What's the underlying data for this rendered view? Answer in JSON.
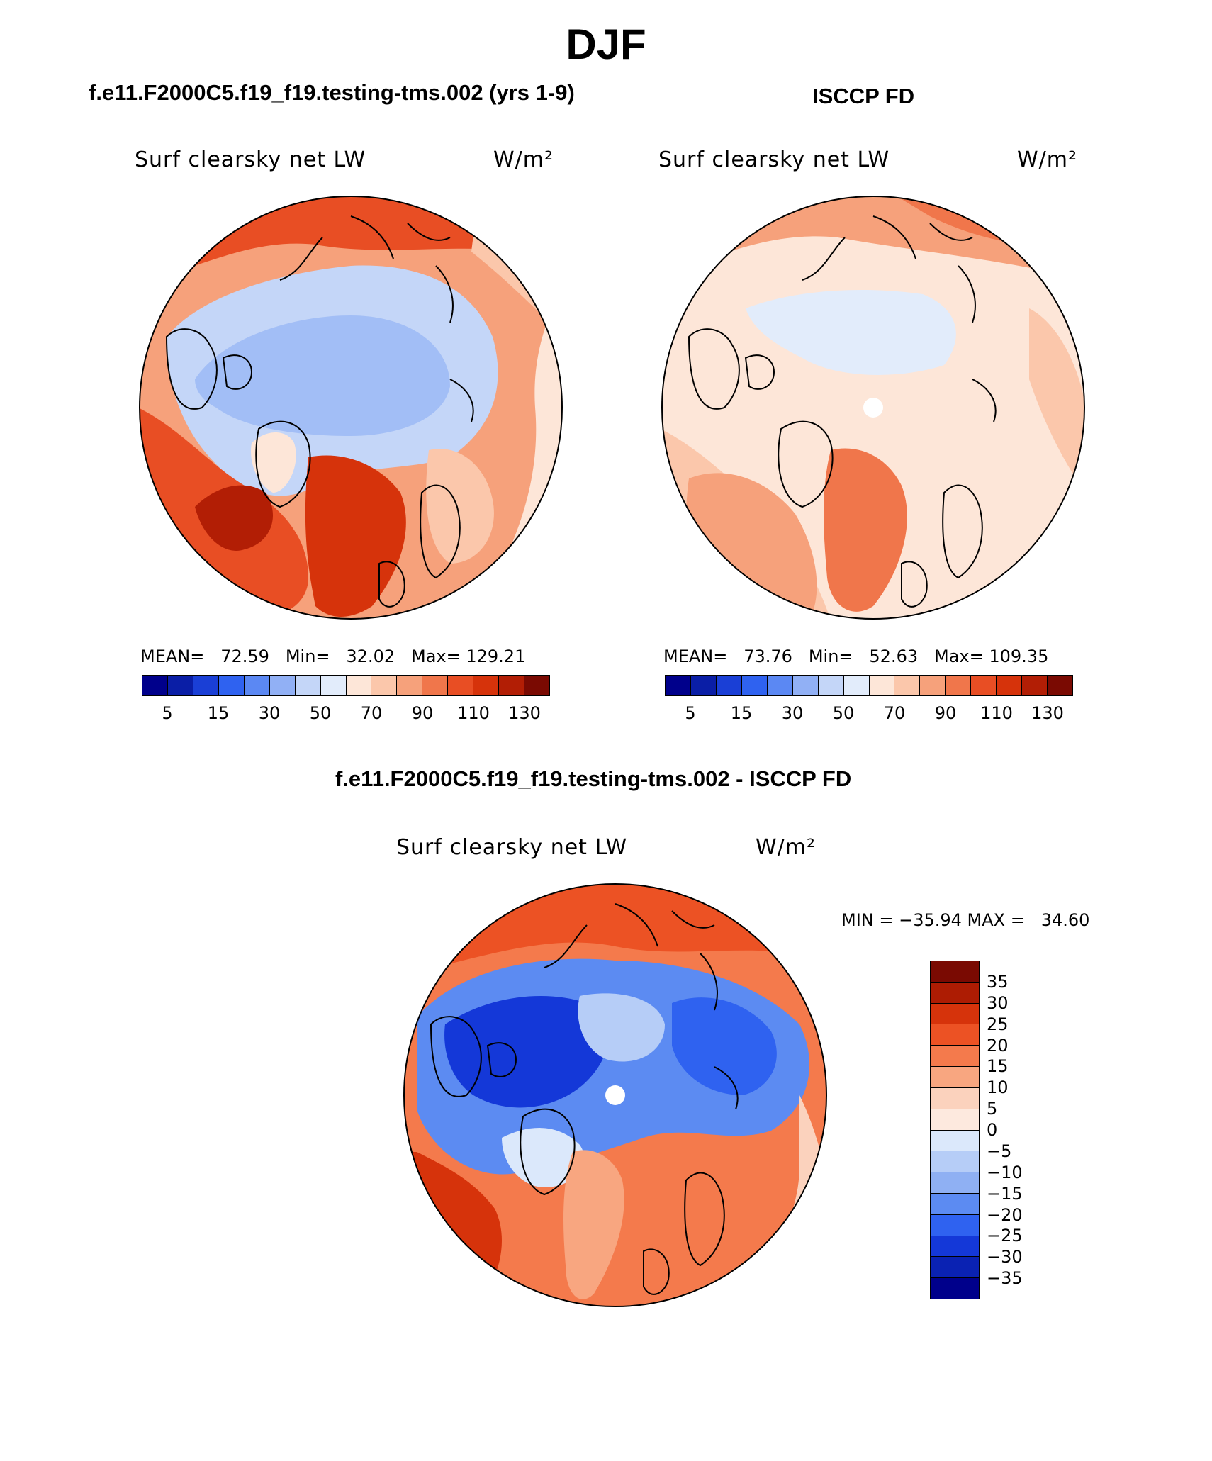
{
  "season": "DJF",
  "panels": {
    "model": {
      "case_title": "f.e11.F2000C5.f19_f19.testing-tms.002 (yrs 1-9)",
      "variable": "Surf clearsky net LW",
      "units": "W/m²",
      "stats": "MEAN=   72.59   Min=   32.02   Max= 129.21",
      "colorbar_ticks": [
        "5",
        "15",
        "30",
        "50",
        "70",
        "90",
        "110",
        "130"
      ]
    },
    "obs": {
      "case_title": "ISCCP FD",
      "variable": "Surf clearsky net LW",
      "units": "W/m²",
      "stats": "MEAN=   73.76   Min=   52.63   Max= 109.35",
      "colorbar_ticks": [
        "5",
        "15",
        "30",
        "50",
        "70",
        "90",
        "110",
        "130"
      ]
    },
    "diff": {
      "case_title": "f.e11.F2000C5.f19_f19.testing-tms.002 - ISCCP FD",
      "variable": "Surf clearsky net LW",
      "units": "W/m²",
      "stats": "MIN = −35.94 MAX =   34.60",
      "colorbar_ticks": [
        "35",
        "30",
        "25",
        "20",
        "15",
        "10",
        "5",
        "0",
        "−5",
        "−10",
        "−15",
        "−20",
        "−25",
        "−30",
        "−35"
      ]
    }
  },
  "colors": {
    "abs_scale": [
      "#00008b",
      "#0a1ea6",
      "#1a3fd6",
      "#2f62f0",
      "#5b88f3",
      "#91b0f5",
      "#c4d6f8",
      "#e2ecfb",
      "#fde6d8",
      "#fbc7ab",
      "#f6a17b",
      "#f0764b",
      "#e84e24",
      "#d6330b",
      "#b21e05",
      "#7a0a02"
    ],
    "diff_scale": [
      "#7a0a02",
      "#ad1c03",
      "#d6330b",
      "#ec5224",
      "#f47a4c",
      "#f8a680",
      "#fbd2bd",
      "#fde9de",
      "#dbe8fb",
      "#b6cdf7",
      "#8fb0f3",
      "#5c8bf2",
      "#2f62f0",
      "#1438d8",
      "#0a22b3",
      "#00008b"
    ],
    "map_blue_light": "#c9daf8",
    "map_blue_mid": "#9ab8f3",
    "map_blue_deep": "#2a5fe8",
    "map_peach": "#fbd7c4",
    "map_orange": "#f39a72",
    "map_red": "#e1481b"
  }
}
